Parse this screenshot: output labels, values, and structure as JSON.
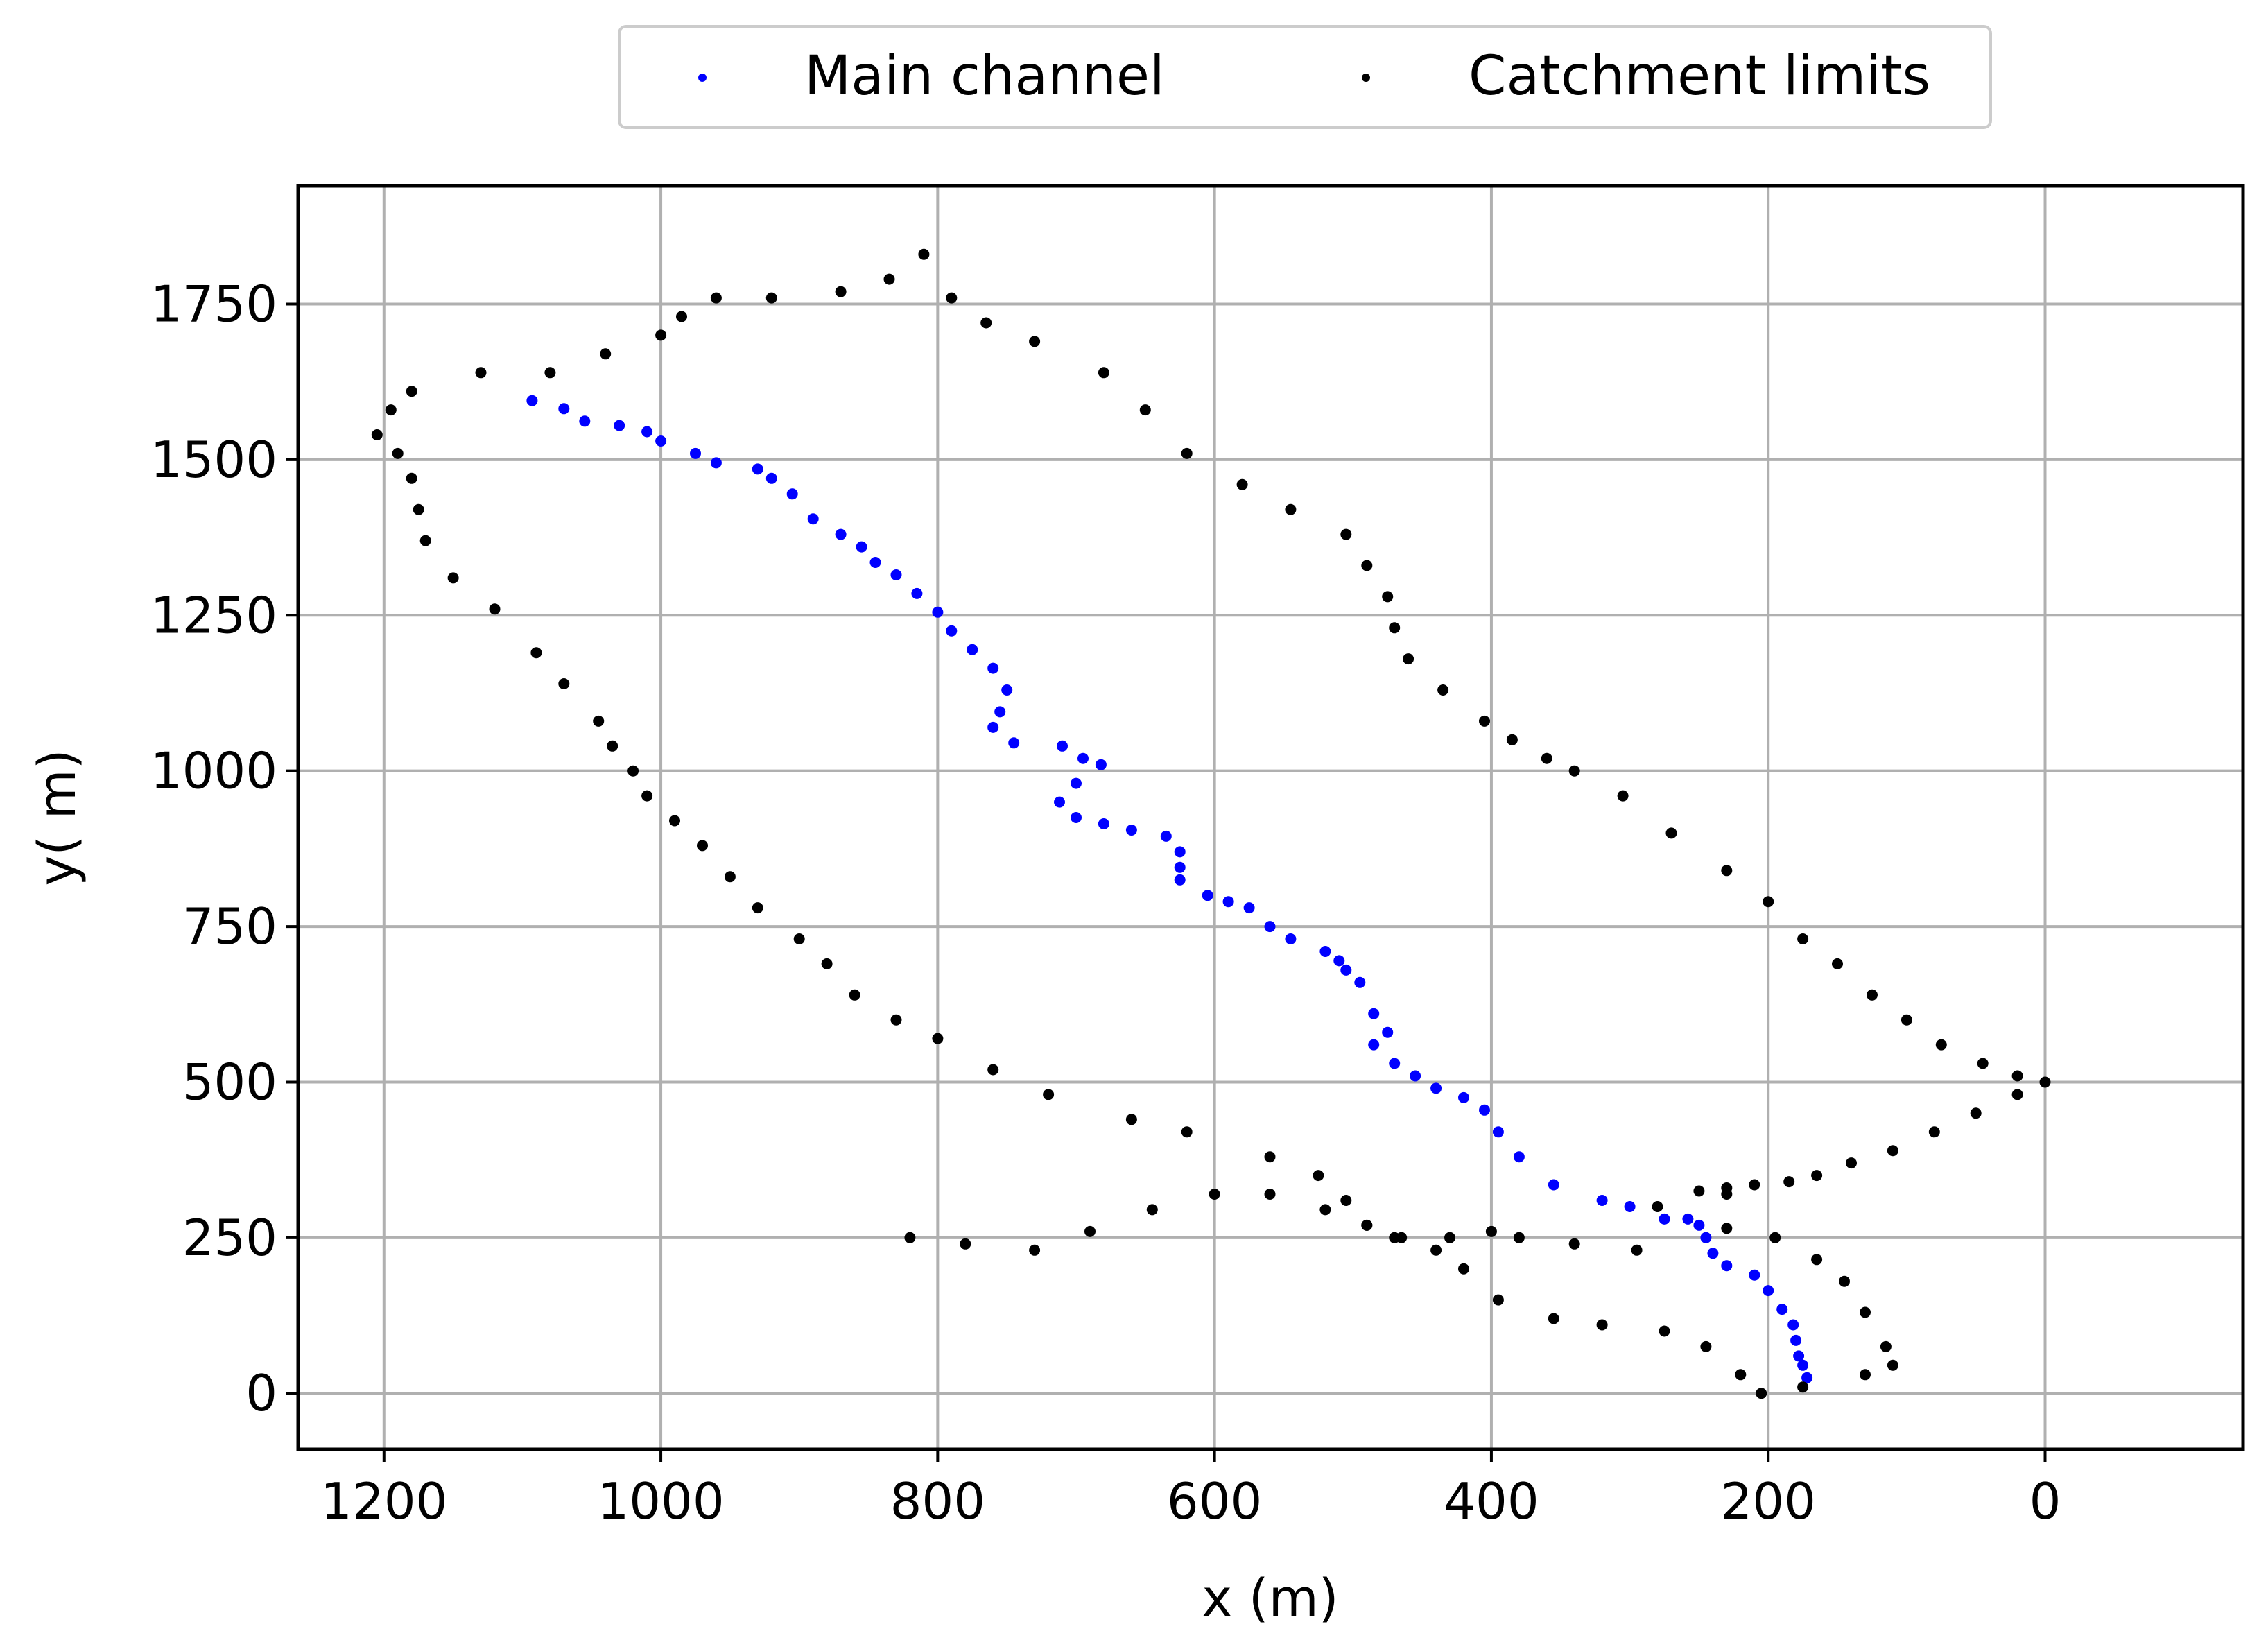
{
  "chart_data": {
    "type": "scatter",
    "title": "",
    "xlabel": "x (m)",
    "ylabel": "y( m)",
    "xlim": [
      1262,
      -143
    ],
    "ylim": [
      -90,
      1940
    ],
    "x_inverted": true,
    "grid": true,
    "x_ticks": [
      1200,
      1000,
      800,
      600,
      400,
      200,
      0
    ],
    "y_ticks": [
      0,
      250,
      500,
      750,
      1000,
      1250,
      1500,
      1750
    ],
    "legend": {
      "placement": "top-center, outside above plot",
      "columns": 2
    },
    "series": [
      {
        "name": "Main channel",
        "color": "#0000ff",
        "marker": "point",
        "points": [
          [
            1093,
            1595
          ],
          [
            1070,
            1582
          ],
          [
            1055,
            1562
          ],
          [
            1030,
            1555
          ],
          [
            1010,
            1545
          ],
          [
            1000,
            1530
          ],
          [
            975,
            1510
          ],
          [
            960,
            1495
          ],
          [
            930,
            1485
          ],
          [
            920,
            1470
          ],
          [
            905,
            1445
          ],
          [
            890,
            1405
          ],
          [
            870,
            1380
          ],
          [
            855,
            1360
          ],
          [
            845,
            1335
          ],
          [
            830,
            1315
          ],
          [
            815,
            1285
          ],
          [
            800,
            1255
          ],
          [
            790,
            1225
          ],
          [
            775,
            1195
          ],
          [
            760,
            1165
          ],
          [
            750,
            1130
          ],
          [
            755,
            1095
          ],
          [
            760,
            1070
          ],
          [
            745,
            1045
          ],
          [
            710,
            1040
          ],
          [
            695,
            1020
          ],
          [
            682,
            1010
          ],
          [
            700,
            980
          ],
          [
            712,
            950
          ],
          [
            700,
            925
          ],
          [
            680,
            915
          ],
          [
            660,
            905
          ],
          [
            635,
            895
          ],
          [
            625,
            870
          ],
          [
            625,
            845
          ],
          [
            625,
            825
          ],
          [
            605,
            800
          ],
          [
            590,
            790
          ],
          [
            575,
            780
          ],
          [
            560,
            750
          ],
          [
            545,
            730
          ],
          [
            520,
            710
          ],
          [
            510,
            695
          ],
          [
            505,
            680
          ],
          [
            495,
            660
          ],
          [
            485,
            610
          ],
          [
            475,
            580
          ],
          [
            485,
            560
          ],
          [
            470,
            530
          ],
          [
            455,
            510
          ],
          [
            440,
            490
          ],
          [
            420,
            475
          ],
          [
            405,
            455
          ],
          [
            395,
            420
          ],
          [
            380,
            380
          ],
          [
            355,
            335
          ],
          [
            320,
            310
          ],
          [
            300,
            300
          ],
          [
            275,
            280
          ],
          [
            258,
            280
          ],
          [
            250,
            270
          ],
          [
            245,
            250
          ],
          [
            240,
            225
          ],
          [
            230,
            205
          ],
          [
            210,
            190
          ],
          [
            200,
            165
          ],
          [
            190,
            135
          ],
          [
            182,
            110
          ],
          [
            180,
            85
          ],
          [
            178,
            60
          ],
          [
            175,
            45
          ],
          [
            172,
            25
          ]
        ]
      },
      {
        "name": "Catchment limits",
        "color": "#000000",
        "marker": "point",
        "points": [
          [
            0,
            500
          ],
          [
            20,
            510
          ],
          [
            45,
            530
          ],
          [
            75,
            560
          ],
          [
            100,
            600
          ],
          [
            125,
            640
          ],
          [
            150,
            690
          ],
          [
            175,
            730
          ],
          [
            200,
            790
          ],
          [
            230,
            840
          ],
          [
            270,
            900
          ],
          [
            305,
            960
          ],
          [
            340,
            1000
          ],
          [
            360,
            1020
          ],
          [
            385,
            1050
          ],
          [
            405,
            1080
          ],
          [
            435,
            1130
          ],
          [
            460,
            1180
          ],
          [
            470,
            1230
          ],
          [
            475,
            1280
          ],
          [
            490,
            1330
          ],
          [
            505,
            1380
          ],
          [
            545,
            1420
          ],
          [
            580,
            1460
          ],
          [
            620,
            1510
          ],
          [
            650,
            1580
          ],
          [
            680,
            1640
          ],
          [
            730,
            1690
          ],
          [
            765,
            1720
          ],
          [
            790,
            1760
          ],
          [
            810,
            1830
          ],
          [
            835,
            1790
          ],
          [
            870,
            1770
          ],
          [
            920,
            1760
          ],
          [
            960,
            1760
          ],
          [
            985,
            1730
          ],
          [
            1000,
            1700
          ],
          [
            1040,
            1670
          ],
          [
            1080,
            1640
          ],
          [
            1130,
            1640
          ],
          [
            1180,
            1610
          ],
          [
            1195,
            1580
          ],
          [
            1205,
            1540
          ],
          [
            1190,
            1510
          ],
          [
            1180,
            1470
          ],
          [
            1175,
            1420
          ],
          [
            1170,
            1370
          ],
          [
            1150,
            1310
          ],
          [
            1120,
            1260
          ],
          [
            1090,
            1190
          ],
          [
            1070,
            1140
          ],
          [
            1045,
            1080
          ],
          [
            1035,
            1040
          ],
          [
            1020,
            1000
          ],
          [
            1010,
            960
          ],
          [
            990,
            920
          ],
          [
            970,
            880
          ],
          [
            950,
            830
          ],
          [
            930,
            780
          ],
          [
            900,
            730
          ],
          [
            880,
            690
          ],
          [
            860,
            640
          ],
          [
            830,
            600
          ],
          [
            800,
            570
          ],
          [
            760,
            520
          ],
          [
            720,
            480
          ],
          [
            660,
            440
          ],
          [
            620,
            420
          ],
          [
            560,
            380
          ],
          [
            525,
            350
          ],
          [
            505,
            310
          ],
          [
            490,
            270
          ],
          [
            470,
            250
          ],
          [
            430,
            250
          ],
          [
            400,
            260
          ],
          [
            380,
            250
          ],
          [
            340,
            240
          ],
          [
            295,
            230
          ],
          [
            280,
            300
          ],
          [
            250,
            325
          ],
          [
            230,
            330
          ],
          [
            210,
            335
          ],
          [
            185,
            340
          ],
          [
            165,
            350
          ],
          [
            140,
            370
          ],
          [
            110,
            390
          ],
          [
            80,
            420
          ],
          [
            50,
            450
          ],
          [
            20,
            480
          ],
          [
            230,
            320
          ],
          [
            230,
            265
          ],
          [
            195,
            250
          ],
          [
            165,
            215
          ],
          [
            145,
            180
          ],
          [
            130,
            130
          ],
          [
            115,
            75
          ],
          [
            110,
            45
          ],
          [
            130,
            30
          ],
          [
            175,
            10
          ],
          [
            205,
            0
          ],
          [
            220,
            30
          ],
          [
            245,
            75
          ],
          [
            275,
            100
          ],
          [
            320,
            110
          ],
          [
            355,
            120
          ],
          [
            395,
            150
          ],
          [
            420,
            200
          ],
          [
            440,
            230
          ],
          [
            465,
            250
          ],
          [
            490,
            270
          ],
          [
            520,
            295
          ],
          [
            560,
            320
          ],
          [
            600,
            320
          ],
          [
            645,
            295
          ],
          [
            690,
            260
          ],
          [
            730,
            230
          ],
          [
            780,
            240
          ],
          [
            820,
            250
          ]
        ]
      }
    ]
  }
}
